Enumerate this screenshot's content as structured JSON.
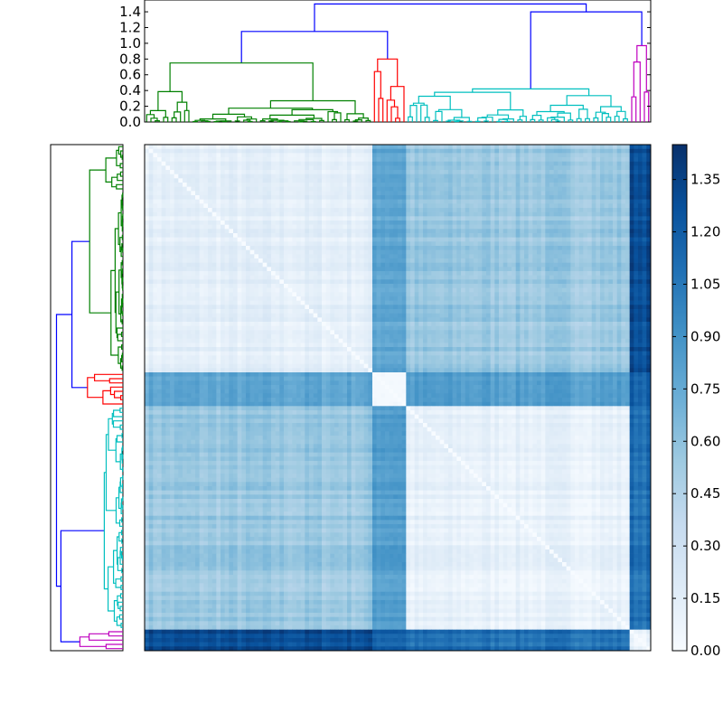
{
  "chart_data": {
    "type": "heatmap",
    "title": "",
    "description_kind": "clustered distance matrix with dendrograms",
    "n_leaves": 120,
    "grid": false,
    "leaf_order_clusters": [
      {
        "name": "green",
        "color": "#008000",
        "size": 54
      },
      {
        "name": "red",
        "color": "#ff0000",
        "size": 8
      },
      {
        "name": "cyan",
        "color": "#00bfbf",
        "size": 53
      },
      {
        "name": "magenta",
        "color": "#bf00bf",
        "size": 5
      }
    ],
    "dendrogram_top": {
      "ylim": [
        0,
        1.55
      ],
      "y_ticks": [
        "0.0",
        "0.2",
        "0.4",
        "0.6",
        "0.8",
        "1.0",
        "1.2",
        "1.4"
      ],
      "link_color": "#0000ff",
      "root_height": 1.5,
      "left_branch_height": 1.15,
      "right_branch_height": 1.4,
      "green_height": 0.75,
      "red_height": 0.8,
      "cyan_height": 0.42,
      "magenta_height": 0.97
    },
    "block_means": [
      [
        0.15,
        0.8,
        0.55,
        1.3
      ],
      [
        0.8,
        0.05,
        0.85,
        1.2
      ],
      [
        0.55,
        0.85,
        0.12,
        1.1
      ],
      [
        1.3,
        1.2,
        1.1,
        0.1
      ]
    ],
    "colorbar": {
      "min": 0.0,
      "max": 1.45,
      "colormap": "Blues",
      "ticks": [
        "0.00",
        "0.15",
        "0.30",
        "0.45",
        "0.60",
        "0.75",
        "0.90",
        "1.05",
        "1.20",
        "1.35"
      ]
    }
  }
}
